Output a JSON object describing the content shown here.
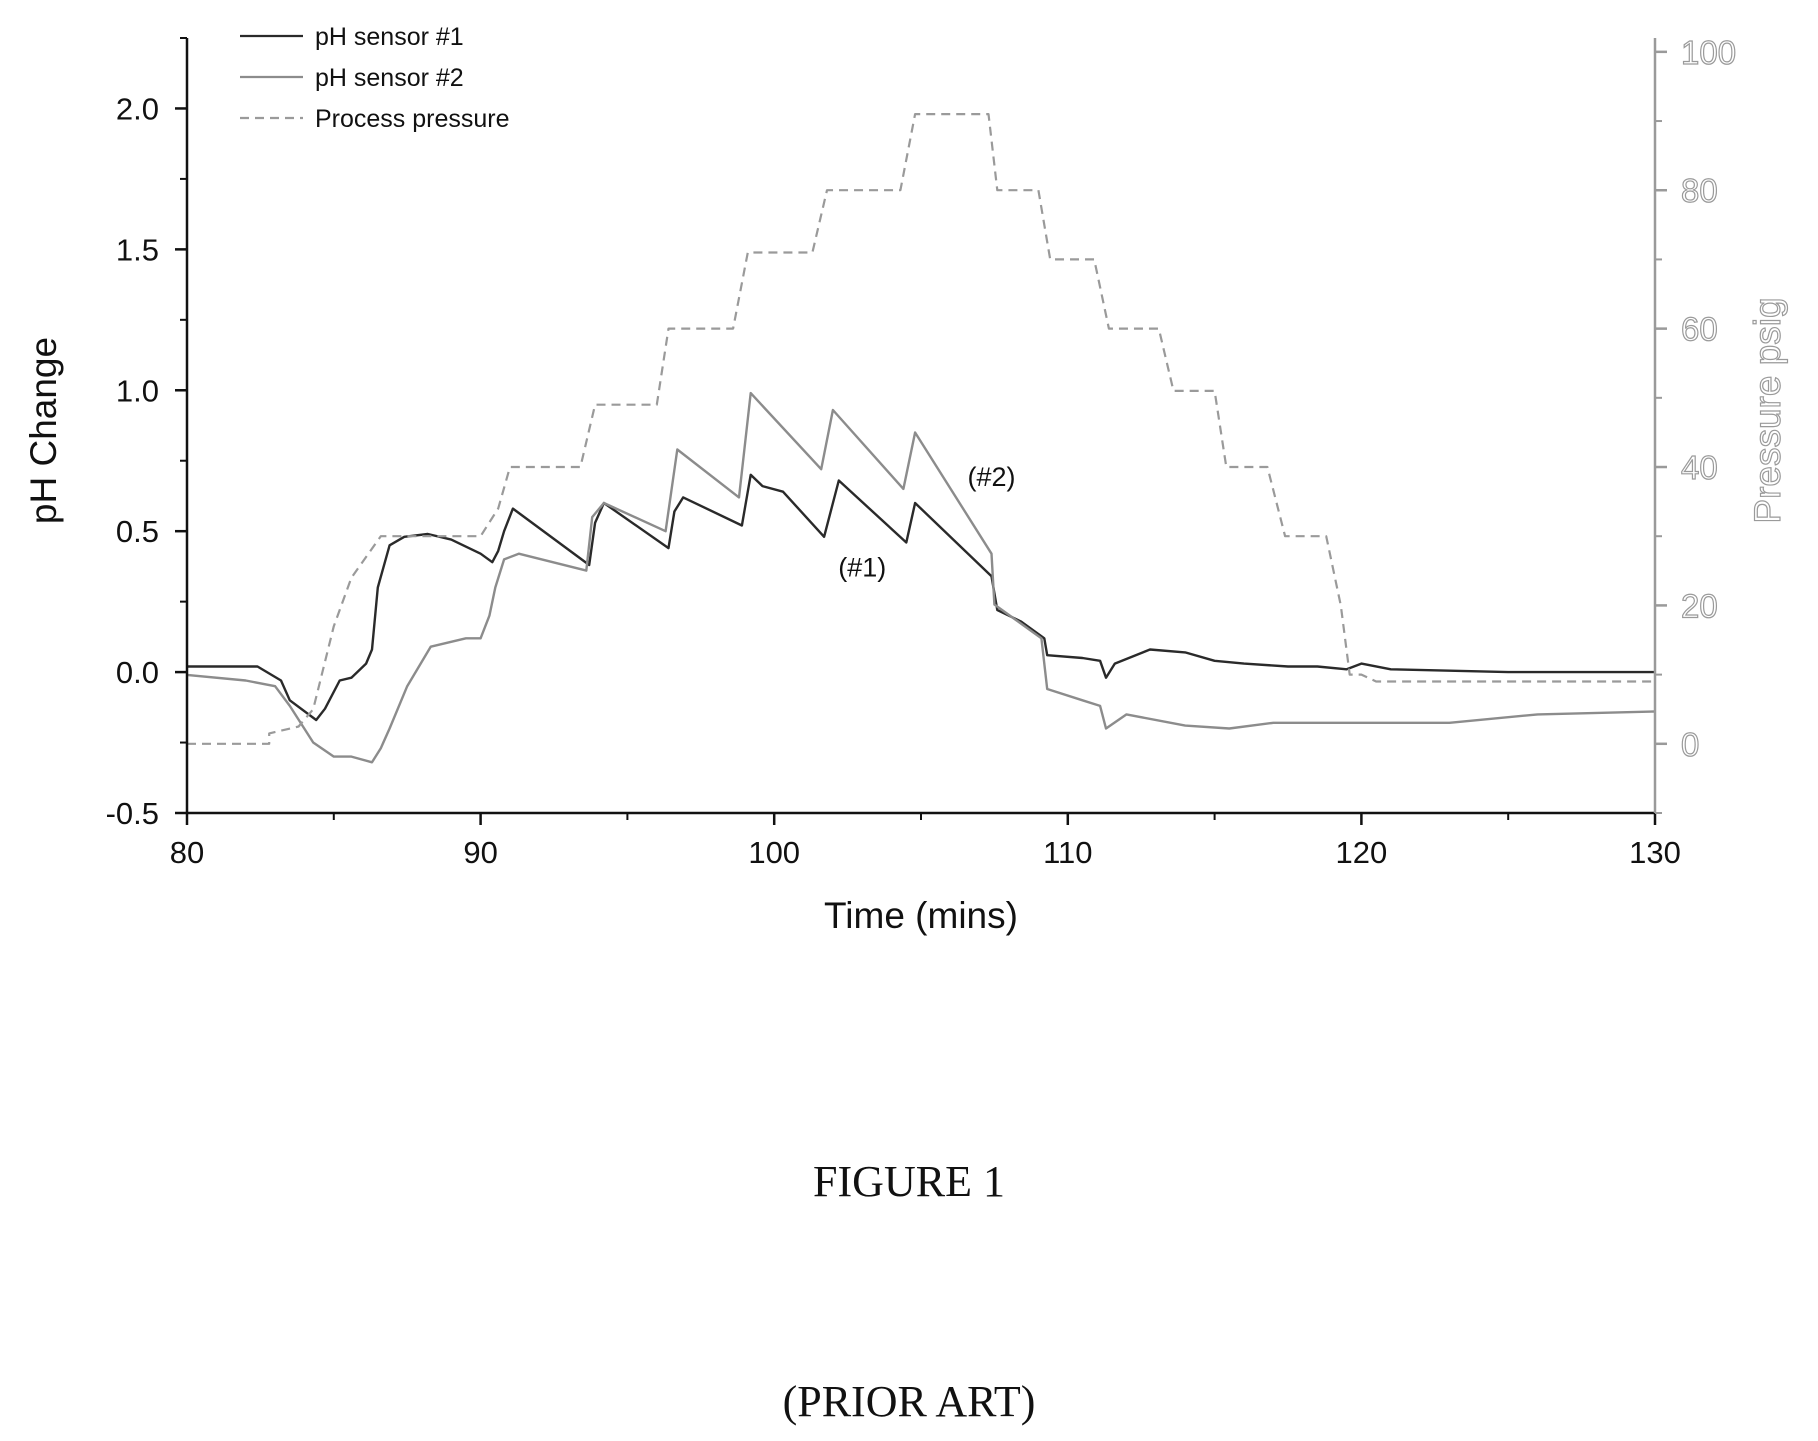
{
  "chart_data": {
    "type": "line",
    "xlabel": "Time (mins)",
    "ylabel": "pH Change",
    "y2label": "Pressure psig",
    "xlim": [
      80,
      130
    ],
    "ylim": [
      -0.5,
      2.25
    ],
    "y2lim": [
      -10,
      102
    ],
    "xticks": [
      80,
      90,
      100,
      110,
      120,
      130
    ],
    "yticks": [
      -0.5,
      0.0,
      0.5,
      1.0,
      1.5,
      2.0
    ],
    "ytick_labels": [
      "-0.5",
      "0.0",
      "0.5",
      "1.0",
      "1.5",
      "2.0"
    ],
    "y2ticks": [
      0,
      20,
      40,
      60,
      80,
      100
    ],
    "grid": false,
    "legend_position": "top-left",
    "series": [
      {
        "name": "pH sensor #1",
        "axis": "left",
        "style": "solid",
        "color": "#2a2a2a",
        "x": [
          80,
          82.4,
          83.2,
          83.5,
          84.4,
          84.7,
          85.2,
          85.6,
          86.1,
          86.3,
          86.5,
          86.9,
          87.4,
          88.2,
          89.0,
          90.0,
          90.4,
          90.6,
          90.8,
          91.1,
          93.7,
          93.9,
          94.2,
          96.4,
          96.6,
          96.9,
          98.9,
          99.2,
          99.6,
          100.3,
          101.7,
          102.2,
          104.5,
          104.8,
          107.4,
          107.6,
          108.4,
          109.2,
          109.3,
          110.5,
          111.1,
          111.3,
          111.6,
          112.8,
          114.0,
          115.0,
          116.0,
          117.5,
          118.5,
          119.5,
          120.0,
          121.0,
          125.0,
          130.0
        ],
        "y": [
          0.02,
          0.02,
          -0.03,
          -0.1,
          -0.17,
          -0.13,
          -0.03,
          -0.02,
          0.03,
          0.08,
          0.3,
          0.45,
          0.48,
          0.49,
          0.47,
          0.42,
          0.39,
          0.43,
          0.5,
          0.58,
          0.38,
          0.53,
          0.6,
          0.44,
          0.57,
          0.62,
          0.52,
          0.7,
          0.66,
          0.64,
          0.48,
          0.68,
          0.46,
          0.6,
          0.34,
          0.22,
          0.18,
          0.12,
          0.06,
          0.05,
          0.04,
          -0.02,
          0.03,
          0.08,
          0.07,
          0.04,
          0.03,
          0.02,
          0.02,
          0.01,
          0.03,
          0.01,
          0.0,
          0.0
        ]
      },
      {
        "name": "pH sensor #2",
        "axis": "left",
        "style": "solid",
        "color": "#8c8c8c",
        "x": [
          80,
          82.0,
          83.0,
          83.5,
          84.3,
          85.0,
          85.6,
          86.3,
          86.6,
          86.9,
          87.5,
          88.3,
          89.5,
          90.0,
          90.3,
          90.5,
          90.8,
          91.3,
          93.6,
          93.8,
          94.2,
          96.3,
          96.7,
          98.8,
          99.2,
          101.6,
          102.0,
          104.4,
          104.8,
          107.4,
          107.5,
          108.3,
          109.1,
          109.3,
          110.5,
          111.1,
          111.3,
          112.0,
          114.0,
          115.5,
          117.0,
          118.5,
          120.0,
          123.0,
          126.0,
          130.0
        ],
        "y": [
          -0.01,
          -0.03,
          -0.05,
          -0.12,
          -0.25,
          -0.3,
          -0.3,
          -0.32,
          -0.27,
          -0.2,
          -0.05,
          0.09,
          0.12,
          0.12,
          0.2,
          0.3,
          0.4,
          0.42,
          0.36,
          0.55,
          0.6,
          0.5,
          0.79,
          0.62,
          0.99,
          0.72,
          0.93,
          0.65,
          0.85,
          0.42,
          0.24,
          0.18,
          0.12,
          -0.06,
          -0.1,
          -0.12,
          -0.2,
          -0.15,
          -0.19,
          -0.2,
          -0.18,
          -0.18,
          -0.18,
          -0.18,
          -0.15,
          -0.14
        ]
      },
      {
        "name": "Process pressure",
        "axis": "right",
        "style": "dashed",
        "color": "#9a9a9a",
        "x": [
          80,
          82.8,
          82.8,
          83.8,
          84.3,
          85.0,
          85.6,
          86.6,
          89.5,
          90.0,
          90.6,
          91.0,
          93.4,
          93.9,
          96.0,
          96.4,
          98.6,
          99.1,
          101.3,
          101.8,
          104.3,
          104.8,
          107.3,
          107.6,
          109.0,
          109.4,
          110.9,
          111.4,
          113.1,
          113.6,
          115.0,
          115.4,
          116.8,
          117.4,
          118.8,
          119.3,
          119.6,
          120.0,
          120.5,
          125.0,
          130.0
        ],
        "x_note": "",
        "y": [
          0,
          0,
          1.5,
          2.5,
          5,
          17,
          24,
          30,
          30,
          30,
          34,
          40,
          40,
          49,
          49,
          60,
          60,
          71,
          71,
          80,
          80,
          91,
          91,
          80,
          80,
          70,
          70,
          60,
          60,
          51,
          51,
          40,
          40,
          30,
          30,
          20,
          10,
          10,
          9,
          9,
          9
        ]
      }
    ],
    "annotations": [
      {
        "text": "(#2)",
        "x": 107.4,
        "y": 0.66
      },
      {
        "text": "(#1)",
        "x": 103.0,
        "y": 0.34
      }
    ]
  },
  "captions": {
    "figure": "FIGURE 1",
    "note": "(PRIOR ART)"
  }
}
